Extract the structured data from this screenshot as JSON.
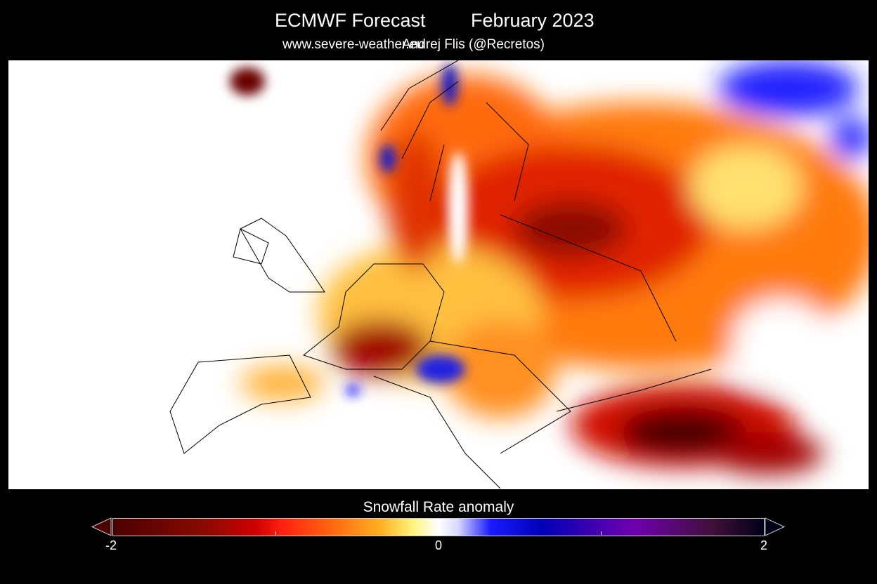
{
  "header": {
    "title": "ECMWF Forecast",
    "date": "February 2023",
    "site": "www.severe-weather.eu",
    "author": "Andrej Flis (@Recretos)"
  },
  "colorbar": {
    "label": "Snowfall Rate anomaly",
    "ticks": [
      "-2",
      "0",
      "2"
    ],
    "min": -2,
    "max": 2,
    "colors": {
      "neg_strong": "#4a0000",
      "neg": "#ff2010",
      "neutral": "#ffffff",
      "pos": "#1a1aff",
      "pos_strong": "#000018"
    }
  },
  "map": {
    "region": "Europe"
  }
}
